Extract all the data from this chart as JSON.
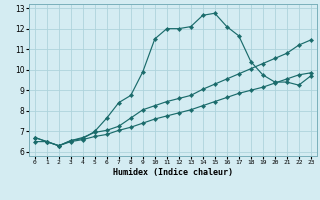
{
  "xlabel": "Humidex (Indice chaleur)",
  "xlim": [
    -0.5,
    23.5
  ],
  "ylim": [
    5.8,
    13.2
  ],
  "xticks": [
    0,
    1,
    2,
    3,
    4,
    5,
    6,
    7,
    8,
    9,
    10,
    11,
    12,
    13,
    14,
    15,
    16,
    17,
    18,
    19,
    20,
    21,
    22,
    23
  ],
  "yticks": [
    6,
    7,
    8,
    9,
    10,
    11,
    12,
    13
  ],
  "bg_color": "#d4ecf2",
  "grid_color": "#aed4dc",
  "line_color": "#1a6b6b",
  "line1_x": [
    0,
    1,
    2,
    3,
    4,
    5,
    6,
    7,
    8,
    9,
    10,
    11,
    12,
    13,
    14,
    15,
    16,
    17,
    18,
    19,
    20,
    21,
    22,
    23
  ],
  "line1_y": [
    6.7,
    6.5,
    6.3,
    6.55,
    6.65,
    7.0,
    7.65,
    8.4,
    8.75,
    9.9,
    11.5,
    12.0,
    12.0,
    12.1,
    12.65,
    12.75,
    12.1,
    11.65,
    10.4,
    9.75,
    9.4,
    9.4,
    9.25,
    9.7
  ],
  "line2_x": [
    0,
    1,
    2,
    3,
    4,
    5,
    6,
    7,
    8,
    9,
    10,
    11,
    12,
    13,
    14,
    15,
    16,
    17,
    18,
    19,
    20,
    21,
    22,
    23
  ],
  "line2_y": [
    6.7,
    6.5,
    6.3,
    6.55,
    6.7,
    6.95,
    7.05,
    7.25,
    7.65,
    8.05,
    8.25,
    8.45,
    8.6,
    8.75,
    9.05,
    9.3,
    9.55,
    9.8,
    10.05,
    10.3,
    10.55,
    10.8,
    11.2,
    11.45
  ],
  "line3_x": [
    0,
    1,
    2,
    3,
    4,
    5,
    6,
    7,
    8,
    9,
    10,
    11,
    12,
    13,
    14,
    15,
    16,
    17,
    18,
    19,
    20,
    21,
    22,
    23
  ],
  "line3_y": [
    6.5,
    6.5,
    6.3,
    6.5,
    6.6,
    6.75,
    6.85,
    7.05,
    7.2,
    7.4,
    7.6,
    7.75,
    7.9,
    8.05,
    8.25,
    8.45,
    8.65,
    8.85,
    9.0,
    9.15,
    9.35,
    9.55,
    9.75,
    9.85
  ]
}
